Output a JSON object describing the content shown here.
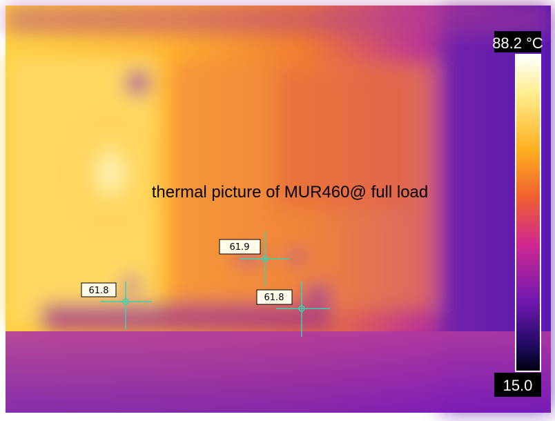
{
  "scale": {
    "max_label": "88.2 °C",
    "min_label": "15.0"
  },
  "caption": "thermal picture of MUR460@ full load",
  "spots": [
    {
      "label": "61.9"
    },
    {
      "label": "61.8"
    },
    {
      "label": "61.8"
    }
  ]
}
